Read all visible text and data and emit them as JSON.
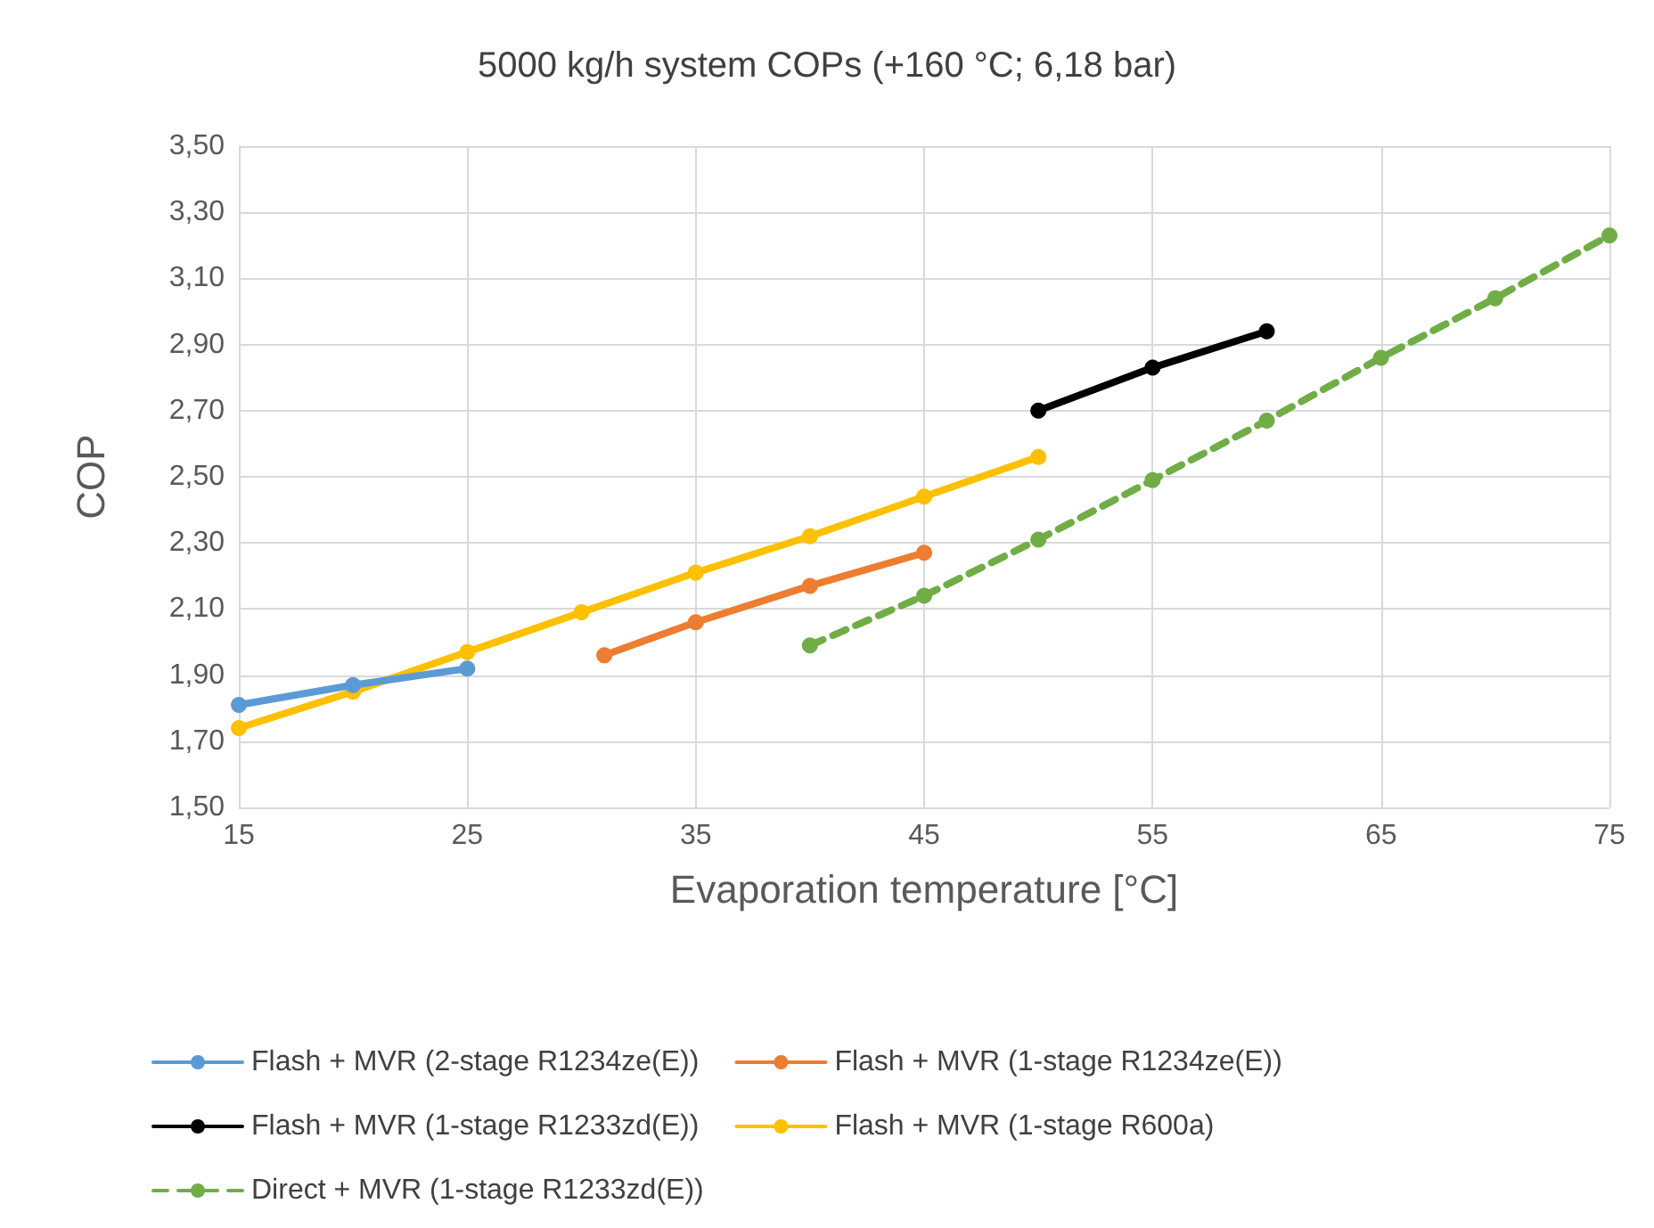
{
  "chart_data": {
    "type": "line",
    "title": "5000 kg/h system COPs (+160 °C; 6,18 bar)",
    "xlabel": "Evaporation temperature [°C]",
    "ylabel": "COP",
    "series": [
      {
        "name": "Flash + MVR (2-stage R1234ze(E))",
        "color": "#5b9bd5",
        "x": [
          15,
          20,
          25
        ],
        "values": [
          1.81,
          1.87,
          1.92
        ]
      },
      {
        "name": "Flash + MVR (1-stage R1234ze(E))",
        "color": "#ed7d31",
        "x": [
          31,
          35,
          40,
          45
        ],
        "values": [
          1.96,
          2.06,
          2.17,
          2.27
        ]
      },
      {
        "name": "Flash + MVR (1-stage R1233zd(E))",
        "color": "#000000",
        "x": [
          50,
          55,
          60
        ],
        "values": [
          2.7,
          2.83,
          2.94
        ]
      },
      {
        "name": "Flash + MVR (1-stage R600a)",
        "color": "#ffc000",
        "x": [
          15,
          20,
          25,
          30,
          35,
          40,
          45,
          50
        ],
        "values": [
          1.74,
          1.85,
          1.97,
          2.09,
          2.21,
          2.32,
          2.44,
          2.56
        ]
      },
      {
        "name": "Direct + MVR (1-stage R1233zd(E))",
        "color": "#70ad47",
        "line_style": "dashed",
        "x": [
          40,
          45,
          50,
          55,
          60,
          65,
          70,
          75
        ],
        "values": [
          1.99,
          2.14,
          2.31,
          2.49,
          2.67,
          2.86,
          3.04,
          3.23
        ]
      }
    ],
    "xlim": [
      15,
      75
    ],
    "xticks": [
      15,
      25,
      35,
      45,
      55,
      65,
      75
    ],
    "ylim": [
      1.5,
      3.5
    ],
    "yticks": [
      {
        "value": 1.5,
        "label": "1,50"
      },
      {
        "value": 1.7,
        "label": "1,70"
      },
      {
        "value": 1.9,
        "label": "1,90"
      },
      {
        "value": 2.1,
        "label": "2,10"
      },
      {
        "value": 2.3,
        "label": "2,30"
      },
      {
        "value": 2.5,
        "label": "2,50"
      },
      {
        "value": 2.7,
        "label": "2,70"
      },
      {
        "value": 2.9,
        "label": "2,90"
      },
      {
        "value": 3.1,
        "label": "3,10"
      },
      {
        "value": 3.3,
        "label": "3,30"
      },
      {
        "value": 3.5,
        "label": "3,50"
      }
    ],
    "grid": true,
    "legend": "bottom",
    "marker": "circle",
    "line_style": "solid"
  }
}
